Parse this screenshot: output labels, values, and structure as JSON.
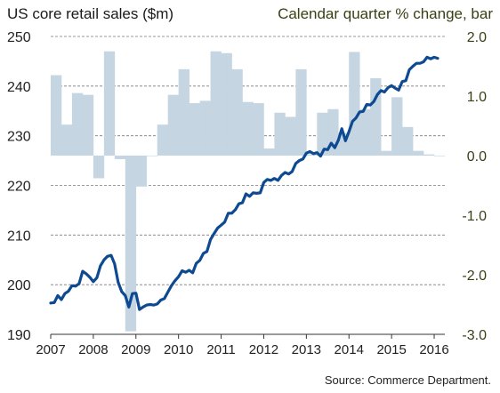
{
  "chart_data": {
    "type": "bar+line",
    "title_left": "US core retail sales ($m)",
    "title_right": "Calendar quarter % change, bar",
    "source": "Source: Commerce Department.",
    "left_axis": {
      "ticks": [
        190,
        200,
        210,
        220,
        230,
        240,
        250
      ],
      "range": [
        190,
        250
      ]
    },
    "right_axis": {
      "ticks": [
        "2.0",
        "1.0",
        "0.0",
        "-1.0",
        "-2.0",
        "-3.0"
      ],
      "range": [
        -3.0,
        2.0
      ]
    },
    "x_axis": {
      "ticks": [
        "2007",
        "2008",
        "2009",
        "2010",
        "2011",
        "2012",
        "2013",
        "2014",
        "2015",
        "2016"
      ],
      "range": [
        2007.0,
        2016.25
      ]
    },
    "grid": "dashed horizontal",
    "colors": {
      "bar": "#c5d5e1",
      "line": "#0d4a91",
      "grid": "#7a7a7a"
    },
    "bars": {
      "name": "Calendar quarter % change",
      "x": [
        2007.0,
        2007.25,
        2007.5,
        2007.75,
        2008.0,
        2008.25,
        2008.5,
        2008.75,
        2009.0,
        2009.25,
        2009.5,
        2009.75,
        2010.0,
        2010.25,
        2010.5,
        2010.75,
        2011.0,
        2011.25,
        2011.5,
        2011.75,
        2012.0,
        2012.25,
        2012.5,
        2012.75,
        2013.0,
        2013.25,
        2013.5,
        2013.75,
        2014.0,
        2014.25,
        2014.5,
        2014.75,
        2015.0,
        2015.25,
        2015.5,
        2015.75,
        2016.0
      ],
      "values": [
        1.35,
        0.52,
        1.05,
        1.02,
        -0.38,
        1.75,
        -0.06,
        -2.95,
        -0.52,
        0.0,
        0.52,
        1.02,
        1.45,
        0.88,
        0.92,
        1.75,
        1.72,
        1.45,
        0.9,
        0.88,
        0.12,
        0.72,
        0.65,
        1.45,
        0.02,
        0.72,
        0.78,
        0.38,
        1.74,
        0.78,
        1.3,
        0.08,
        0.98,
        0.48,
        0.08,
        0.02,
        0.0
      ]
    },
    "line": {
      "name": "US core retail sales ($m)",
      "x": [
        2007.0,
        2007.083,
        2007.167,
        2007.25,
        2007.333,
        2007.417,
        2007.5,
        2007.583,
        2007.667,
        2007.75,
        2007.833,
        2007.917,
        2008.0,
        2008.083,
        2008.167,
        2008.25,
        2008.333,
        2008.417,
        2008.5,
        2008.583,
        2008.667,
        2008.75,
        2008.833,
        2008.917,
        2009.0,
        2009.083,
        2009.167,
        2009.25,
        2009.333,
        2009.417,
        2009.5,
        2009.583,
        2009.667,
        2009.75,
        2009.833,
        2009.917,
        2010.0,
        2010.083,
        2010.167,
        2010.25,
        2010.333,
        2010.417,
        2010.5,
        2010.583,
        2010.667,
        2010.75,
        2010.833,
        2010.917,
        2011.0,
        2011.083,
        2011.167,
        2011.25,
        2011.333,
        2011.417,
        2011.5,
        2011.583,
        2011.667,
        2011.75,
        2011.833,
        2011.917,
        2012.0,
        2012.083,
        2012.167,
        2012.25,
        2012.333,
        2012.417,
        2012.5,
        2012.583,
        2012.667,
        2012.75,
        2012.833,
        2012.917,
        2013.0,
        2013.083,
        2013.167,
        2013.25,
        2013.333,
        2013.417,
        2013.5,
        2013.583,
        2013.667,
        2013.75,
        2013.833,
        2013.917,
        2014.0,
        2014.083,
        2014.167,
        2014.25,
        2014.333,
        2014.417,
        2014.5,
        2014.583,
        2014.667,
        2014.75,
        2014.833,
        2014.917,
        2015.0,
        2015.083,
        2015.167,
        2015.25,
        2015.333,
        2015.417,
        2015.5,
        2015.583,
        2015.667,
        2015.75,
        2015.833,
        2015.917,
        2016.0,
        2016.083
      ],
      "values": [
        196.3,
        196.4,
        197.8,
        197.0,
        198.2,
        198.7,
        199.8,
        199.7,
        200.2,
        202.7,
        202.2,
        201.5,
        200.6,
        201.4,
        203.8,
        205.0,
        205.7,
        205.9,
        204.2,
        200.5,
        198.6,
        197.8,
        195.5,
        198.2,
        198.3,
        195.0,
        195.5,
        195.9,
        196.0,
        195.9,
        196.1,
        196.9,
        197.2,
        198.5,
        199.8,
        200.8,
        201.6,
        202.8,
        202.5,
        202.9,
        202.4,
        204.3,
        204.9,
        206.3,
        206.7,
        209.1,
        210.3,
        211.4,
        212.0,
        212.6,
        214.4,
        214.4,
        215.1,
        216.3,
        216.5,
        218.3,
        217.8,
        218.5,
        218.4,
        218.5,
        220.6,
        221.2,
        221.0,
        221.4,
        221.0,
        222.0,
        222.6,
        222.3,
        222.8,
        224.4,
        225.0,
        225.3,
        226.5,
        226.8,
        226.4,
        226.6,
        225.9,
        227.3,
        227.2,
        228.5,
        227.6,
        229.1,
        231.4,
        229.0,
        230.8,
        232.9,
        233.6,
        234.8,
        234.9,
        236.3,
        236.2,
        236.9,
        238.3,
        239.1,
        238.8,
        239.7,
        240.1,
        239.6,
        239.2,
        240.9,
        241.1,
        243.3,
        244.0,
        244.6,
        244.6,
        244.9,
        245.8,
        245.5,
        245.8,
        245.6
      ]
    }
  }
}
